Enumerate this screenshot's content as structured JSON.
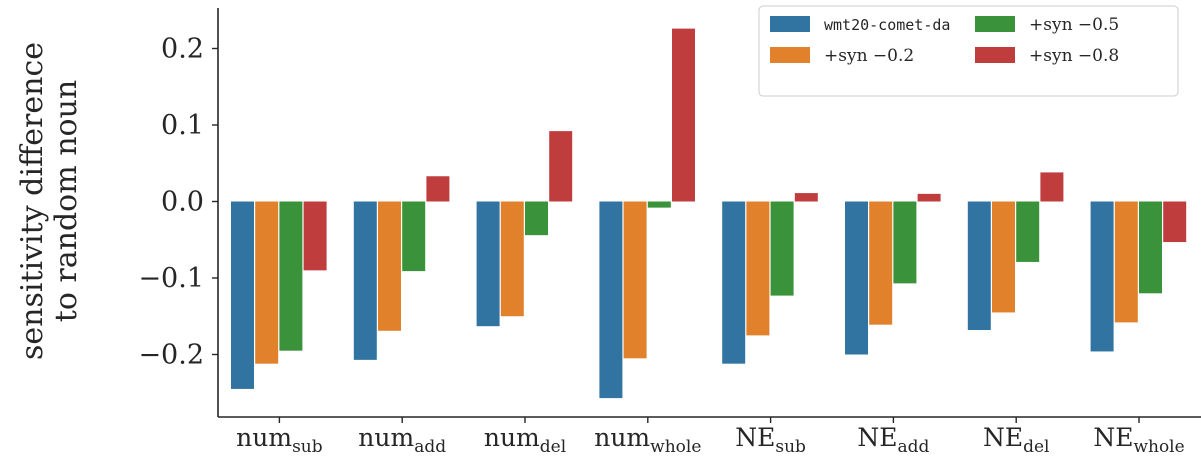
{
  "chart_data": {
    "type": "bar",
    "title": "",
    "ylabel_lines": [
      "sensitivity difference",
      "to random noun"
    ],
    "xlabel": "",
    "ylim": [
      -0.27,
      0.255
    ],
    "yticks": [
      -0.2,
      -0.1,
      0.0,
      0.1,
      0.2
    ],
    "ytick_labels": [
      "−0.2",
      "−0.1",
      "0.0",
      "0.1",
      "0.2"
    ],
    "categories": [
      {
        "main": "num",
        "sub": "sub"
      },
      {
        "main": "num",
        "sub": "add"
      },
      {
        "main": "num",
        "sub": "del"
      },
      {
        "main": "num",
        "sub": "whole"
      },
      {
        "main": "NE",
        "sub": "sub"
      },
      {
        "main": "NE",
        "sub": "add"
      },
      {
        "main": "NE",
        "sub": "del"
      },
      {
        "main": "NE",
        "sub": "whole"
      }
    ],
    "series": [
      {
        "name": "wmt20-comet-da",
        "color": "#3274a1",
        "values": [
          -0.245,
          -0.207,
          -0.163,
          -0.257,
          -0.212,
          -0.2,
          -0.168,
          -0.196
        ]
      },
      {
        "name": "+syn −0.2",
        "color": "#e1812c",
        "values": [
          -0.212,
          -0.169,
          -0.15,
          -0.205,
          -0.175,
          -0.161,
          -0.145,
          -0.158
        ]
      },
      {
        "name": "+syn −0.5",
        "color": "#3a923a",
        "values": [
          -0.195,
          -0.091,
          -0.044,
          -0.008,
          -0.123,
          -0.107,
          -0.079,
          -0.12
        ]
      },
      {
        "name": "+syn −0.8",
        "color": "#c03d3e",
        "values": [
          -0.09,
          0.033,
          0.092,
          0.226,
          0.011,
          0.01,
          0.038,
          -0.053
        ]
      }
    ],
    "legend": {
      "placement": "top-right",
      "columns": 2,
      "order": [
        0,
        2,
        1,
        3
      ]
    },
    "grid": false
  }
}
